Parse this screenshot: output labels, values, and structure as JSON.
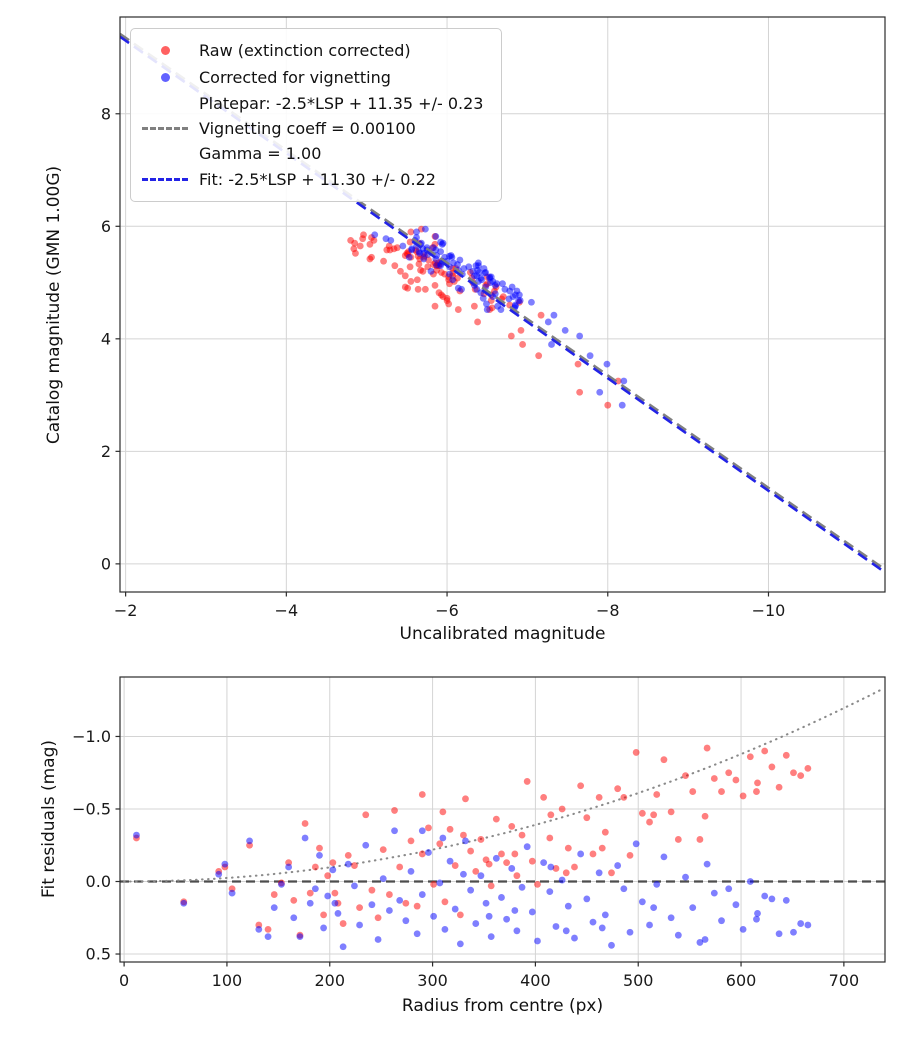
{
  "figure": {
    "background": "#ffffff"
  },
  "top_chart": {
    "xlabel": "Uncalibrated magnitude",
    "ylabel": "Catalog magnitude (GMN 1.00G)",
    "legend": {
      "raw_label": "Raw (extinction corrected)",
      "corrected_label": "Corrected for vignetting",
      "platepar_label_line1": "Platepar: -2.5*LSP + 11.35 +/- 0.23",
      "platepar_label_line2": "Vignetting coeff = 0.00100",
      "platepar_label_line3": "Gamma = 1.00",
      "fit_label": "Fit: -2.5*LSP + 11.30 +/- 0.22"
    }
  },
  "bottom_chart": {
    "xlabel": "Radius from centre (px)",
    "ylabel": "Fit residuals (mag)"
  },
  "colors": {
    "raw": "#ff0000",
    "corrected": "#0000ff",
    "platepar_line": "#808080",
    "fit_line": "#2323e6",
    "zero_line": "#4d4d4d",
    "vignette_curve": "#8a8a8a",
    "grid": "#d4d4d4",
    "spine": "#2b2b2b"
  },
  "chart_data": {
    "charts": [
      {
        "type": "scatter",
        "xlabel": "Uncalibrated magnitude",
        "ylabel": "Catalog magnitude (GMN 1.00G)",
        "xlim": [
          -1.93,
          -11.45
        ],
        "ylim": [
          9.72,
          -0.5
        ],
        "x_axis_inverted": true,
        "y_axis_inverted": true,
        "grid": true,
        "legend_position": "upper left",
        "xticks": [
          -2,
          -4,
          -6,
          -8,
          -10
        ],
        "xtick_labels": [
          "−2",
          "−4",
          "−6",
          "−8",
          "−10"
        ],
        "yticks": [
          0,
          2,
          4,
          6,
          8
        ],
        "ytick_labels": [
          "0",
          "2",
          "4",
          "6",
          "8"
        ],
        "lines": [
          {
            "name": "platepar",
            "label": "Platepar: -2.5*LSP + 11.35 +/- 0.23 / Vignetting coeff = 0.00100 / Gamma = 1.00",
            "style": "dashed",
            "color_key": "platepar_line",
            "slope": 1,
            "intercept": 11.35
          },
          {
            "name": "fit",
            "label": "Fit: -2.5*LSP + 11.30 +/- 0.22",
            "style": "dashed",
            "color_key": "fit_line",
            "slope": 1,
            "intercept": 11.3
          }
        ],
        "series": [
          {
            "name": "Raw (extinction corrected)",
            "color_key": "raw",
            "derivation": "x = catalog_mag - 11.30 - raw_residual, y = catalog_mag"
          },
          {
            "name": "Corrected for vignetting",
            "color_key": "corrected",
            "derivation": "x = catalog_mag - 11.30 - corrected_residual, y = catalog_mag"
          }
        ]
      },
      {
        "type": "scatter",
        "xlabel": "Radius from centre (px)",
        "ylabel": "Fit residuals (mag)",
        "xlim": [
          -4,
          740
        ],
        "ylim": [
          -1.41,
          0.555
        ],
        "grid": true,
        "xticks": [
          0,
          100,
          200,
          300,
          400,
          500,
          600,
          700
        ],
        "xtick_labels": [
          "0",
          "100",
          "200",
          "300",
          "400",
          "500",
          "600",
          "700"
        ],
        "yticks": [
          0.5,
          0,
          -0.5,
          -1
        ],
        "ytick_labels": [
          "0.5",
          "0.0",
          "−0.5",
          "−1.0"
        ],
        "zero_line": {
          "y": 0,
          "style": "dashed",
          "color_key": "zero_line"
        },
        "vignetting_curve": {
          "style": "dotted",
          "color_key": "vignette_curve",
          "coeff": 1.3,
          "r_scale": 730,
          "formula": "y = -coeff*(r/r_scale)^2"
        },
        "series": [
          {
            "name": "Raw (extinction corrected)",
            "color_key": "raw",
            "derivation": "x = radius_px, y = raw_residual"
          },
          {
            "name": "Corrected for vignetting",
            "color_key": "corrected",
            "derivation": "x = radius_px, y = corrected_residual"
          }
        ]
      }
    ],
    "stars": {
      "columns": [
        "radius_px",
        "catalog_mag",
        "raw_residual_mag",
        "corrected_residual_mag"
      ],
      "rows": [
        [
          12,
          5.45,
          -0.3,
          -0.32
        ],
        [
          58,
          5.62,
          0.14,
          0.15
        ],
        [
          92,
          4.88,
          -0.07,
          -0.05
        ],
        [
          98,
          5.31,
          -0.1,
          -0.12
        ],
        [
          105,
          5.7,
          0.05,
          0.08
        ],
        [
          122,
          4.52,
          -0.25,
          -0.28
        ],
        [
          131,
          5.1,
          0.3,
          0.33
        ],
        [
          140,
          5.95,
          0.33,
          0.38
        ],
        [
          146,
          4.71,
          0.09,
          0.18
        ],
        [
          153,
          5.38,
          0.01,
          0.02
        ],
        [
          160,
          5.55,
          -0.13,
          -0.1
        ],
        [
          165,
          4.95,
          0.13,
          0.25
        ],
        [
          171,
          5.82,
          0.37,
          0.38
        ],
        [
          176,
          5.2,
          -0.4,
          -0.3
        ],
        [
          181,
          4.6,
          0.08,
          0.15
        ],
        [
          186,
          5.48,
          -0.1,
          0.05
        ],
        [
          190,
          5.05,
          -0.23,
          -0.18
        ],
        [
          194,
          5.68,
          0.23,
          0.32
        ],
        [
          198,
          4.8,
          -0.04,
          0.1
        ],
        [
          203,
          5.3,
          -0.13,
          -0.08
        ],
        [
          208,
          5.9,
          0.15,
          0.22
        ],
        [
          213,
          4.42,
          0.29,
          0.45
        ],
        [
          218,
          5.15,
          -0.18,
          -0.12
        ],
        [
          224,
          5.58,
          -0.11,
          0.03
        ],
        [
          229,
          4.98,
          0.18,
          0.3
        ],
        [
          235,
          5.75,
          -0.46,
          -0.25
        ],
        [
          241,
          5.25,
          0.06,
          0.16
        ],
        [
          247,
          4.65,
          0.25,
          0.4
        ],
        [
          252,
          5.42,
          -0.22,
          -0.02
        ],
        [
          258,
          5.08,
          0.09,
          0.2
        ],
        [
          263,
          5.85,
          -0.49,
          -0.35
        ],
        [
          268,
          5.35,
          -0.1,
          0.13
        ],
        [
          274,
          4.75,
          0.15,
          0.27
        ],
        [
          279,
          5.52,
          -0.28,
          -0.07
        ],
        [
          285,
          5.18,
          0.17,
          0.36
        ],
        [
          290,
          4.55,
          -0.19,
          0.09
        ],
        [
          296,
          5.65,
          -0.37,
          -0.2
        ],
        [
          301,
          5.0,
          0.02,
          0.24
        ],
        [
          307,
          5.28,
          -0.26,
          0.01
        ],
        [
          312,
          4.85,
          0.14,
          0.33
        ],
        [
          317,
          5.6,
          -0.36,
          -0.14
        ],
        [
          322,
          5.12,
          -0.11,
          0.19
        ],
        [
          327,
          4.92,
          0.23,
          0.43
        ],
        [
          332,
          5.78,
          -0.57,
          -0.28
        ],
        [
          337,
          5.22,
          -0.21,
          0.06
        ],
        [
          342,
          4.68,
          -0.07,
          0.29
        ],
        [
          347,
          5.5,
          -0.29,
          -0.04
        ],
        [
          352,
          5.32,
          -0.15,
          0.15
        ],
        [
          357,
          4.78,
          0.03,
          0.38
        ],
        [
          362,
          5.58,
          -0.43,
          -0.16
        ],
        [
          367,
          5.02,
          -0.19,
          0.11
        ],
        [
          372,
          5.4,
          -0.13,
          0.26
        ],
        [
          377,
          4.58,
          -0.38,
          -0.09
        ],
        [
          382,
          5.72,
          -0.04,
          0.34
        ],
        [
          387,
          5.15,
          -0.32,
          0.04
        ],
        [
          392,
          4.88,
          -0.69,
          -0.24
        ],
        [
          397,
          5.45,
          -0.14,
          0.21
        ],
        [
          402,
          5.25,
          0.02,
          0.41
        ],
        [
          408,
          4.72,
          -0.58,
          -0.13
        ],
        [
          414,
          5.62,
          -0.3,
          0.07
        ],
        [
          420,
          5.08,
          -0.09,
          0.31
        ],
        [
          426,
          4.95,
          -0.5,
          -0.01
        ],
        [
          432,
          5.55,
          -0.23,
          0.17
        ],
        [
          438,
          5.3,
          -0.1,
          0.39
        ],
        [
          444,
          4.62,
          -0.66,
          -0.19
        ],
        [
          450,
          5.8,
          -0.44,
          0.12
        ],
        [
          456,
          5.18,
          -0.19,
          0.28
        ],
        [
          462,
          4.82,
          -0.58,
          -0.06
        ],
        [
          468,
          5.48,
          -0.34,
          0.23
        ],
        [
          474,
          5.35,
          -0.06,
          0.44
        ],
        [
          480,
          4.52,
          -0.64,
          -0.11
        ],
        [
          486,
          5.68,
          -0.58,
          0.05
        ],
        [
          492,
          5.1,
          -0.18,
          0.35
        ],
        [
          498,
          4.9,
          -0.89,
          -0.26
        ],
        [
          504,
          5.58,
          -0.47,
          0.14
        ],
        [
          511,
          5.22,
          -0.41,
          0.3
        ],
        [
          518,
          4.75,
          -0.6,
          0.02
        ],
        [
          525,
          5.42,
          -0.84,
          -0.17
        ],
        [
          532,
          5.28,
          -0.48,
          0.25
        ],
        [
          539,
          4.98,
          -0.29,
          0.37
        ],
        [
          546,
          5.65,
          -0.73,
          -0.03
        ],
        [
          553,
          5.05,
          -0.62,
          0.18
        ],
        [
          560,
          4.85,
          -0.29,
          0.42
        ],
        [
          567,
          5.52,
          -0.92,
          -0.12
        ],
        [
          574,
          5.38,
          -0.71,
          0.08
        ],
        [
          581,
          4.68,
          -0.62,
          0.27
        ],
        [
          588,
          5.75,
          -0.75,
          0.05
        ],
        [
          595,
          5.12,
          -0.7,
          0.16
        ],
        [
          602,
          4.78,
          -0.59,
          0.33
        ],
        [
          609,
          5.6,
          -0.86,
          0.0
        ],
        [
          616,
          5.2,
          -0.68,
          0.22
        ],
        [
          623,
          4.92,
          -0.9,
          0.1
        ],
        [
          630,
          5.45,
          -0.79,
          0.12
        ],
        [
          637,
          5.3,
          -0.65,
          0.36
        ],
        [
          644,
          4.58,
          -0.87,
          0.13
        ],
        [
          651,
          5.7,
          -0.75,
          0.35
        ],
        [
          658,
          5.02,
          -0.73,
          0.29
        ],
        [
          665,
          4.88,
          -0.78,
          0.3
        ],
        [
          290,
          3.05,
          -0.6,
          -0.35
        ],
        [
          310,
          2.82,
          -0.48,
          -0.3
        ],
        [
          205,
          3.25,
          0.08,
          0.15
        ],
        [
          355,
          3.55,
          -0.12,
          0.24
        ],
        [
          415,
          3.9,
          -0.46,
          -0.1
        ],
        [
          465,
          4.15,
          -0.23,
          0.32
        ],
        [
          515,
          3.7,
          -0.46,
          0.18
        ],
        [
          565,
          4.05,
          -0.45,
          0.4
        ],
        [
          615,
          4.3,
          -0.62,
          0.26
        ],
        [
          330,
          5.33,
          -0.32,
          -0.05
        ],
        [
          380,
          5.47,
          -0.19,
          0.2
        ],
        [
          430,
          5.17,
          -0.06,
          0.34
        ]
      ]
    }
  }
}
